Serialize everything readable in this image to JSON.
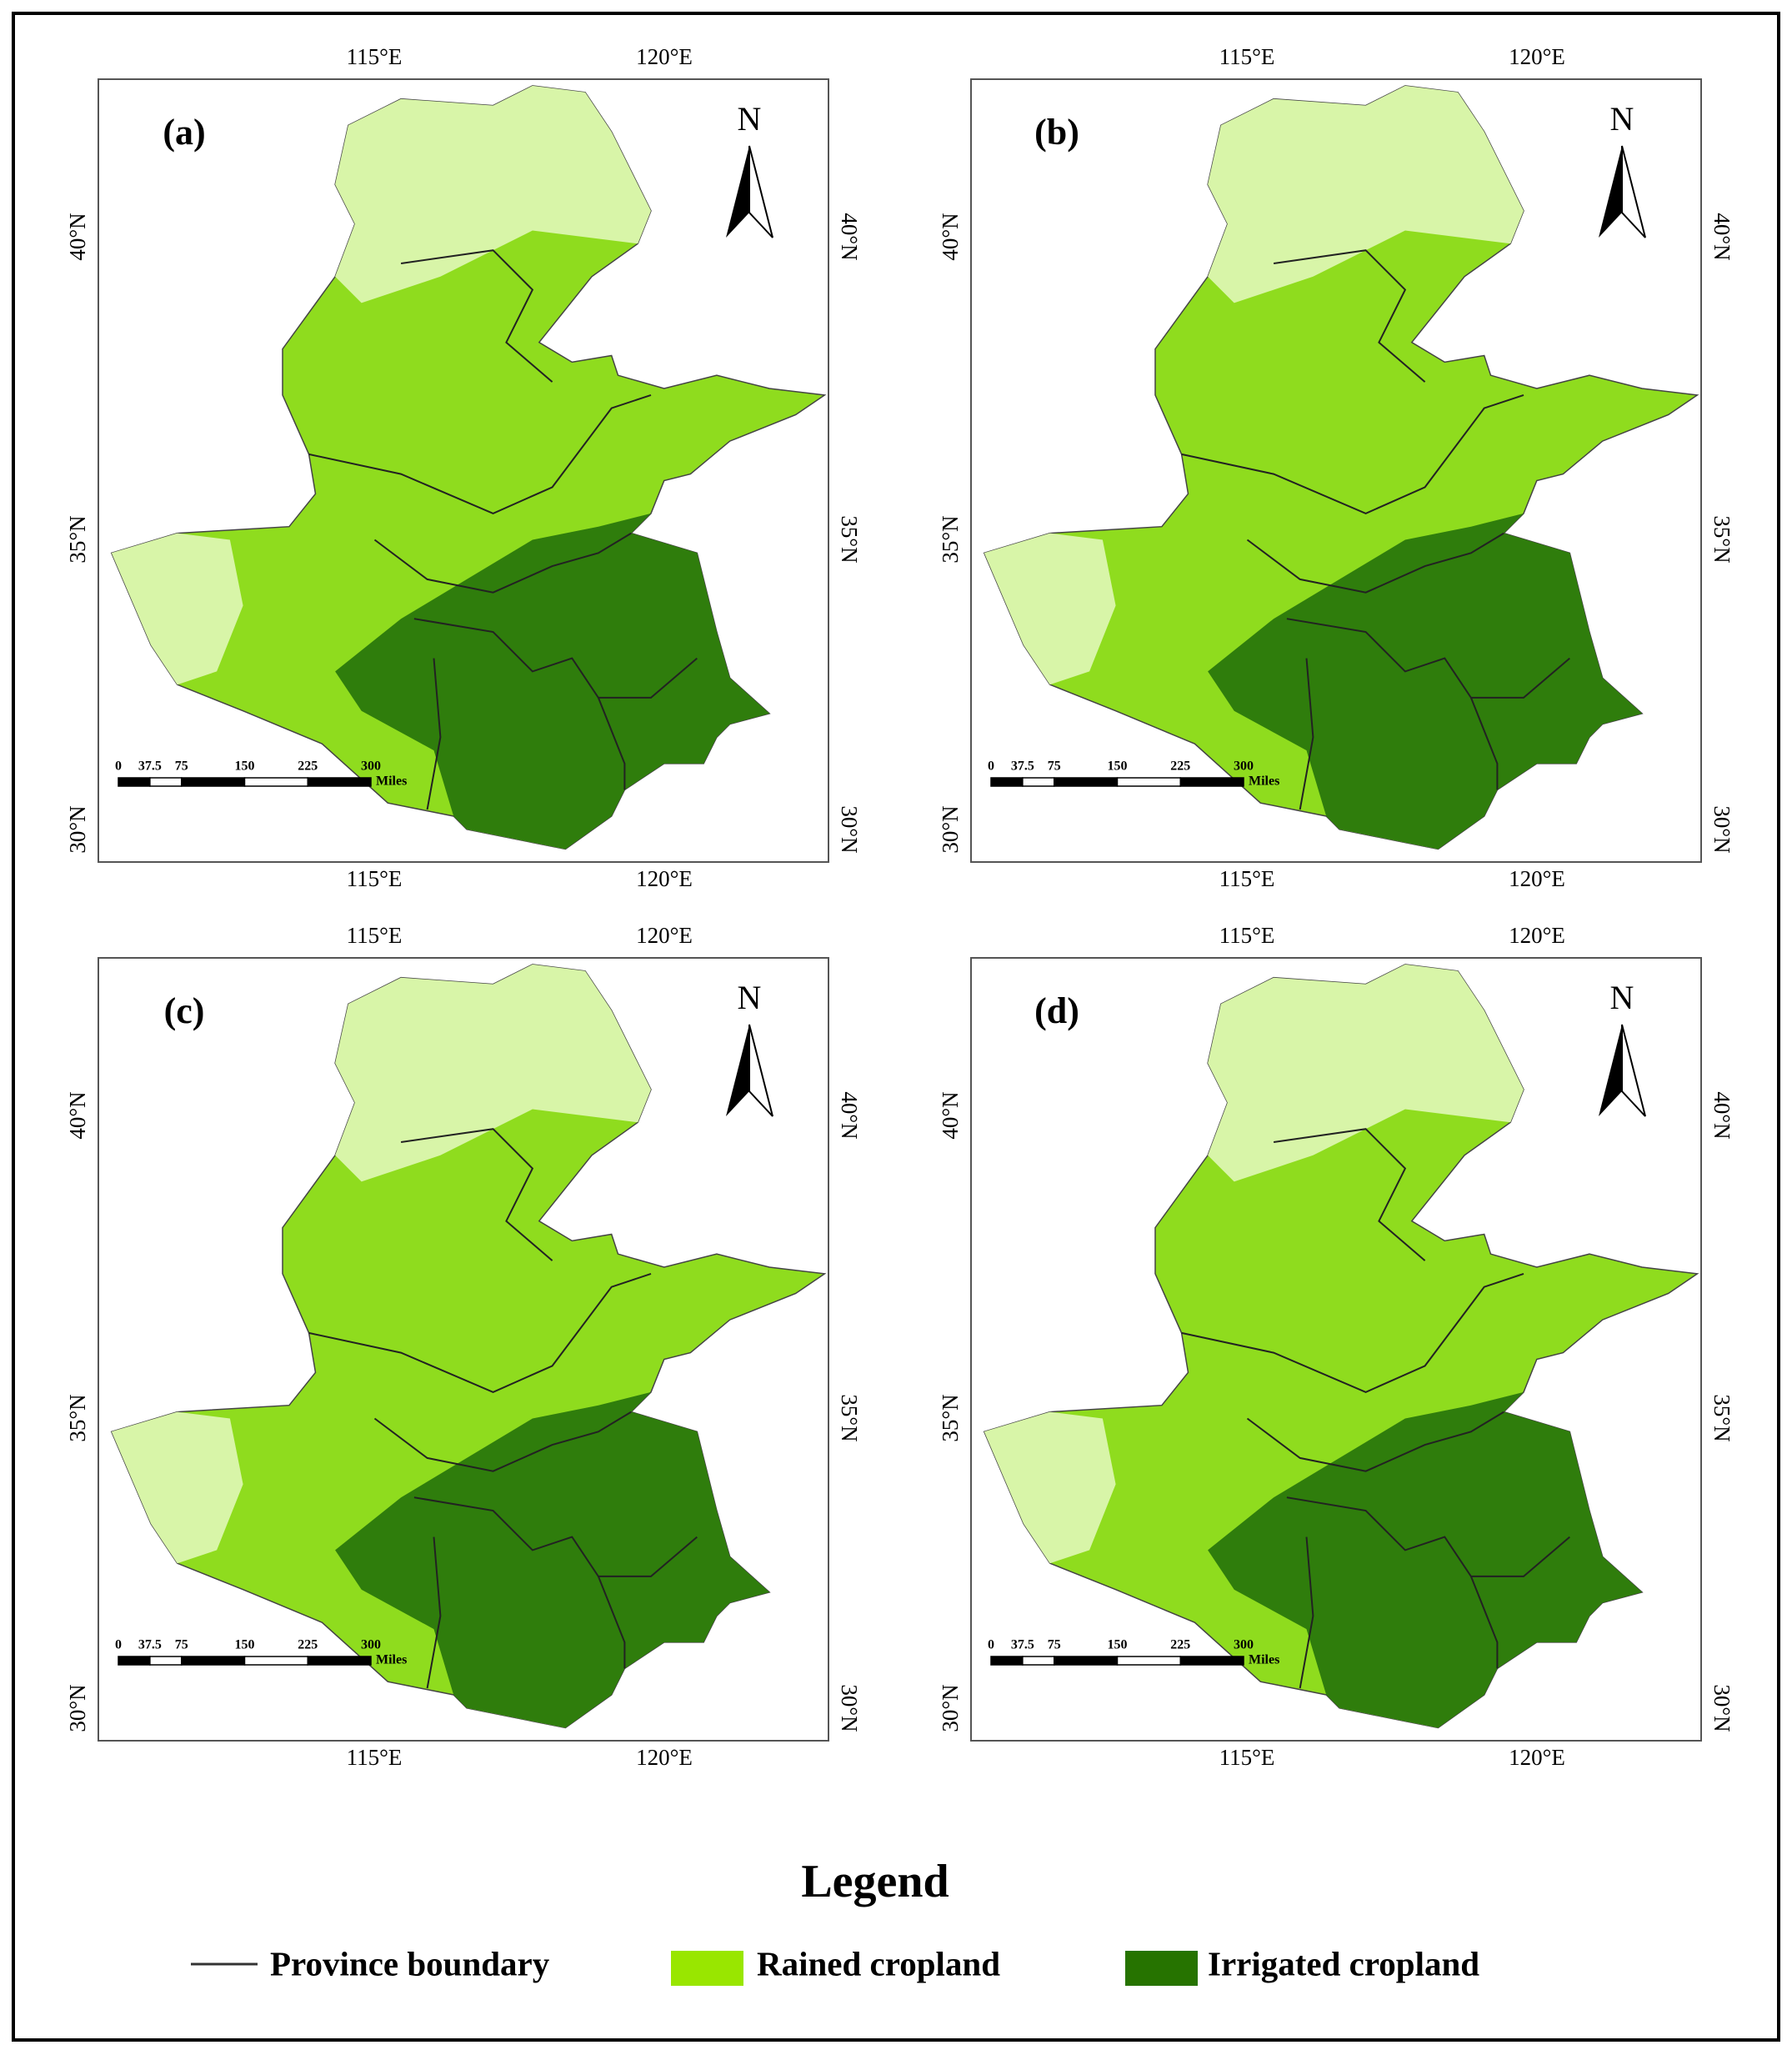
{
  "panels": [
    {
      "label": "(a)"
    },
    {
      "label": "(b)"
    },
    {
      "label": "(c)"
    },
    {
      "label": "(d)"
    }
  ],
  "lon_labels": [
    "115°E",
    "120°E"
  ],
  "lat_labels": [
    "40°N",
    "35°N",
    "30°N"
  ],
  "north": "N",
  "scale_bar": {
    "ticks": [
      0,
      37.5,
      75,
      150,
      225,
      300
    ],
    "unit": "Miles"
  },
  "legend": {
    "title": "Legend",
    "items": [
      {
        "label": "Province boundary",
        "color": "#333333"
      },
      {
        "label": "Rained cropland",
        "color": "#99e600"
      },
      {
        "label": "Irrigated cropland",
        "color": "#267300"
      }
    ]
  }
}
